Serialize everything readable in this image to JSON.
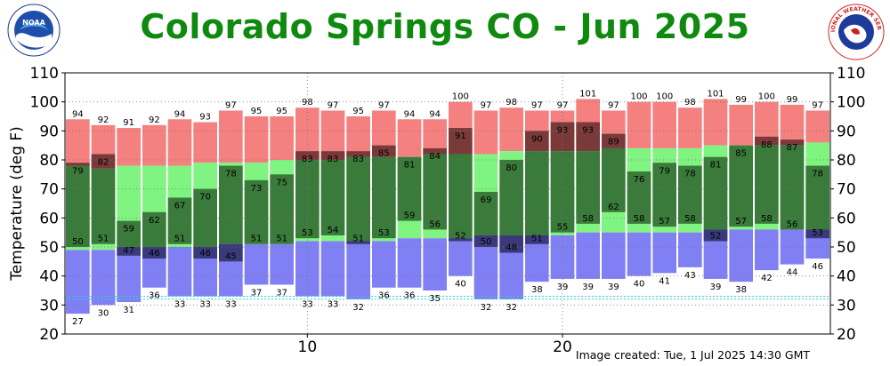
{
  "header": {
    "title": "Colorado Springs CO - Jun 2025",
    "left_logo_text": "NOAA",
    "right_logo_text": "NATIONAL WEATHER SERVICE"
  },
  "footer": {
    "created": "Image created: Tue, 1 Jul 2025 14:30 GMT"
  },
  "colors": {
    "title": "#0f8a0f",
    "record_high": "#f48080",
    "normal_range": "#80f480",
    "record_low": "#8080f4",
    "obs_in_normal": "#3a7a3a",
    "obs_above_normal": "#7a3a3a",
    "obs_below_normal": "#3a3a7a",
    "mean_line": "#30d0d0"
  },
  "chart_data": {
    "type": "bar",
    "title": "Colorado Springs CO - Jun 2025",
    "ylabel": "Temperature (deg F)",
    "xlabel": "",
    "ylim": [
      20,
      110
    ],
    "yticks": [
      20,
      30,
      40,
      50,
      60,
      70,
      80,
      90,
      100,
      110
    ],
    "xticks": [
      10,
      20
    ],
    "xlim": [
      0.5,
      30.5
    ],
    "grid": true,
    "days": [
      1,
      2,
      3,
      4,
      5,
      6,
      7,
      8,
      9,
      10,
      11,
      12,
      13,
      14,
      15,
      16,
      17,
      18,
      19,
      20,
      21,
      22,
      23,
      24,
      25,
      26,
      27,
      28,
      29,
      30
    ],
    "series": [
      {
        "name": "Record High",
        "values": [
          94,
          92,
          91,
          92,
          94,
          93,
          97,
          95,
          95,
          98,
          97,
          95,
          97,
          94,
          94,
          100,
          97,
          98,
          97,
          97,
          101,
          97,
          100,
          100,
          98,
          101,
          99,
          100,
          99,
          97
        ]
      },
      {
        "name": "Normal High",
        "values": [
          78,
          77,
          78,
          78,
          78,
          79,
          79,
          79,
          80,
          80,
          80,
          81,
          81,
          81,
          82,
          82,
          82,
          83,
          83,
          83,
          83,
          84,
          84,
          84,
          84,
          85,
          85,
          85,
          85,
          86
        ]
      },
      {
        "name": "Observed High",
        "values": [
          79,
          82,
          59,
          62,
          67,
          70,
          78,
          73,
          75,
          83,
          83,
          83,
          85,
          81,
          84,
          91,
          69,
          80,
          90,
          93,
          93,
          89,
          76,
          79,
          78,
          81,
          85,
          88,
          87,
          78
        ]
      },
      {
        "name": "Observed Low",
        "values": [
          50,
          51,
          47,
          46,
          51,
          46,
          45,
          51,
          51,
          53,
          54,
          51,
          53,
          59,
          56,
          52,
          50,
          48,
          51,
          55,
          58,
          62,
          58,
          57,
          58,
          52,
          57,
          58,
          56,
          53
        ]
      },
      {
        "name": "Normal Low",
        "values": [
          49,
          49,
          50,
          50,
          50,
          50,
          51,
          51,
          51,
          52,
          52,
          52,
          52,
          53,
          53,
          53,
          54,
          54,
          54,
          54,
          55,
          55,
          55,
          55,
          55,
          56,
          56,
          56,
          56,
          56
        ]
      },
      {
        "name": "Record Low",
        "values": [
          27,
          30,
          31,
          36,
          33,
          33,
          33,
          37,
          37,
          33,
          33,
          32,
          36,
          36,
          35,
          40,
          32,
          32,
          38,
          39,
          39,
          39,
          40,
          41,
          43,
          39,
          38,
          42,
          44,
          46
        ]
      }
    ],
    "reference_lines": [
      {
        "value": 33,
        "color": "#30d0d0"
      },
      {
        "value": 32,
        "color": "#30d0d0"
      }
    ]
  }
}
